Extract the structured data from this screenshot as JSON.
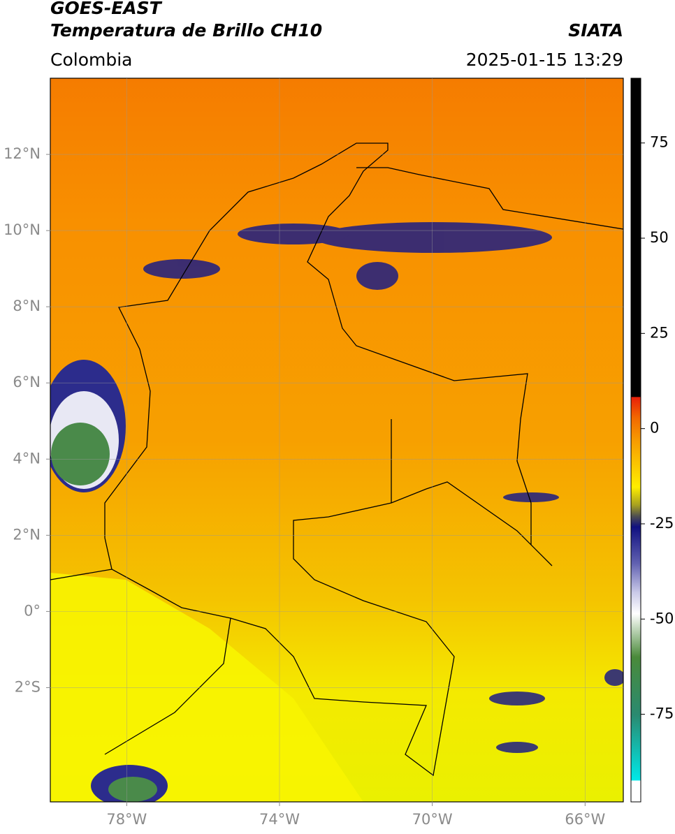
{
  "header": {
    "title": "GOES-EAST",
    "subtitle": "Temperatura de Brillo CH10",
    "source": "SIATA",
    "region": "Colombia",
    "datetime": "2025-01-15 13:29"
  },
  "map": {
    "xlim": [
      -80,
      -65
    ],
    "ylim": [
      -5,
      14
    ],
    "xticks": [
      {
        "value": -78,
        "label": "78°W"
      },
      {
        "value": -74,
        "label": "74°W"
      },
      {
        "value": -70,
        "label": "70°W"
      },
      {
        "value": -66,
        "label": "66°W"
      }
    ],
    "yticks": [
      {
        "value": 12,
        "label": "12°N"
      },
      {
        "value": 10,
        "label": "10°N"
      },
      {
        "value": 8,
        "label": "8°N"
      },
      {
        "value": 6,
        "label": "6°N"
      },
      {
        "value": 4,
        "label": "4°N"
      },
      {
        "value": 2,
        "label": "2°N"
      },
      {
        "value": 0,
        "label": "0°"
      },
      {
        "value": -2,
        "label": "2°S"
      }
    ]
  },
  "colorbar": {
    "lim": [
      -98,
      92
    ],
    "ticks": [
      75,
      50,
      25,
      0,
      -25,
      -50,
      -75
    ]
  }
}
